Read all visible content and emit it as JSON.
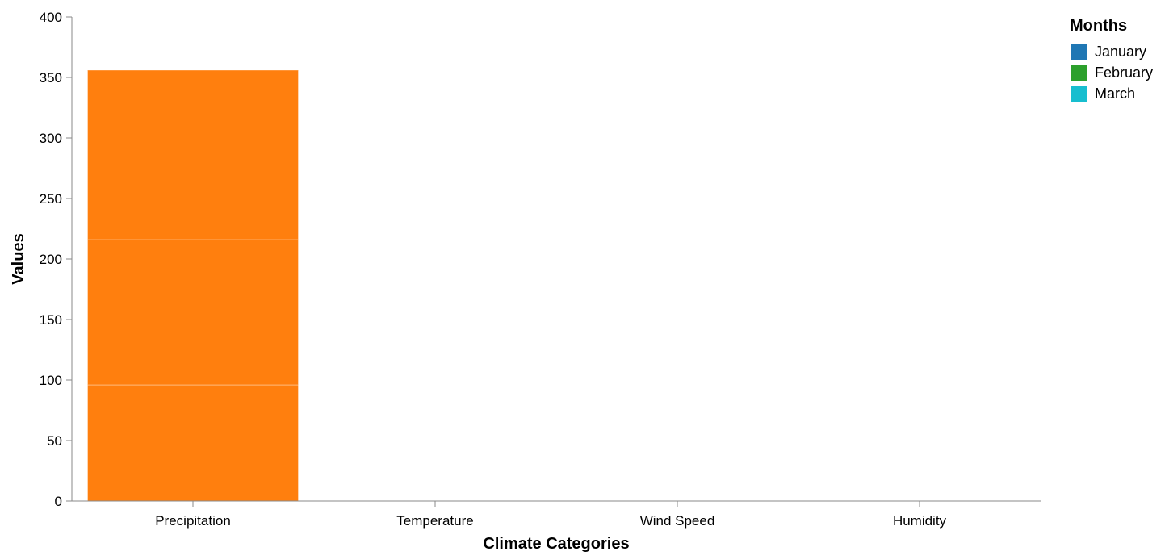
{
  "chart_data": {
    "type": "bar",
    "stacked": true,
    "categories": [
      "Precipitation",
      "Temperature",
      "Wind Speed",
      "Humidity"
    ],
    "series": [
      {
        "name": "January",
        "color": "#1f77b4",
        "values": [
          96,
          0,
          0,
          0
        ]
      },
      {
        "name": "February",
        "color": "#2ca02c",
        "values": [
          120,
          0,
          0,
          0
        ]
      },
      {
        "name": "March",
        "color": "#17becf",
        "values": [
          140,
          0,
          0,
          0
        ]
      }
    ],
    "rendered_bar_color": "#ff7f0e",
    "xlabel": "Climate Categories",
    "ylabel": "Values",
    "ylim": [
      0,
      400
    ],
    "yticks": [
      "0",
      "50",
      "100",
      "150",
      "200",
      "250",
      "300",
      "350",
      "400"
    ],
    "grid": false,
    "legend": {
      "title": "Months",
      "position": "top-right"
    }
  }
}
